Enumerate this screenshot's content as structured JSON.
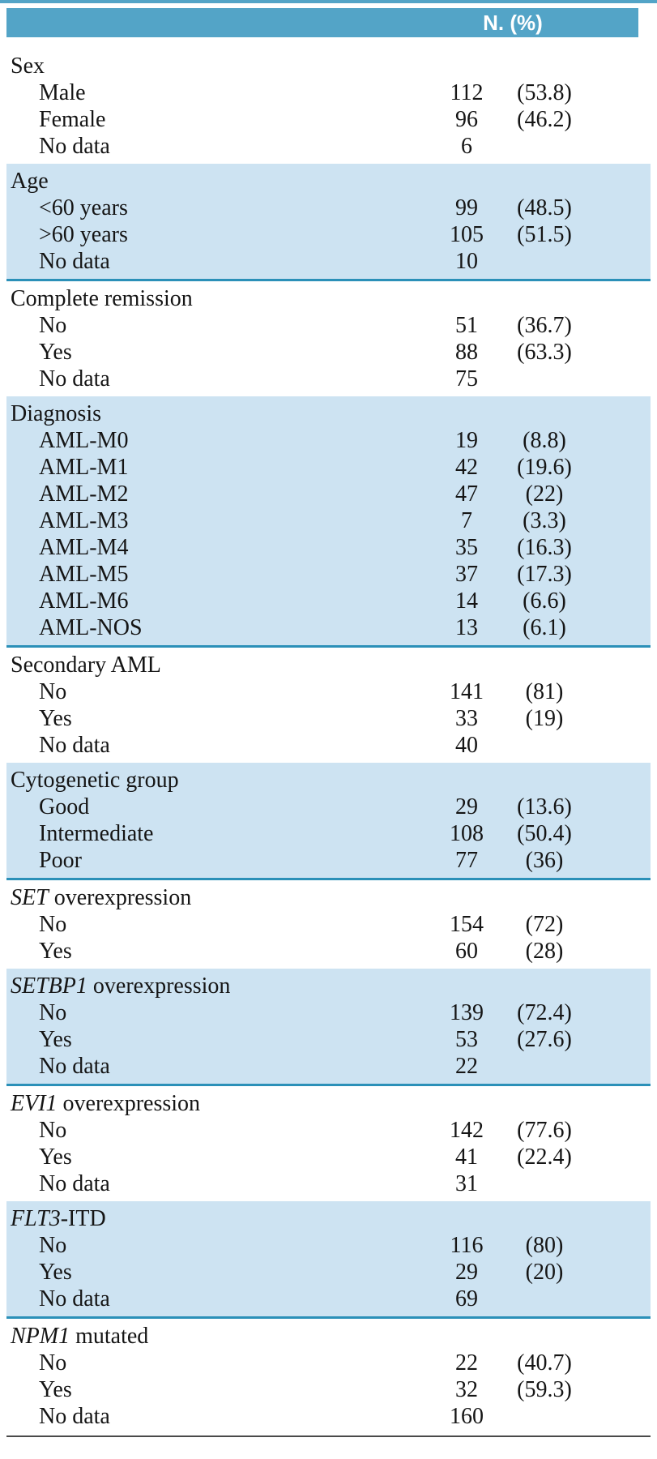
{
  "header": {
    "column_label": "N. (%)"
  },
  "colors": {
    "band_teal": "#53a4c7",
    "row_light_blue": "#cde3f2",
    "separator_teal": "#2b90b8",
    "bottom_rule_gray": "#4a4a4a"
  },
  "sections": [
    {
      "group_italic": "",
      "group_rest": "Sex",
      "shaded": false,
      "rows": [
        {
          "label": "Male",
          "n": "112",
          "pct": "(53.8)"
        },
        {
          "label": "Female",
          "n": "96",
          "pct": "(46.2)"
        },
        {
          "label": "No data",
          "n": "6",
          "pct": ""
        }
      ]
    },
    {
      "group_italic": "",
      "group_rest": "Age",
      "shaded": true,
      "rows": [
        {
          "label": "<60 years",
          "n": "99",
          "pct": "(48.5)"
        },
        {
          "label": ">60 years",
          "n": "105",
          "pct": "(51.5)"
        },
        {
          "label": "No data",
          "n": "10",
          "pct": ""
        }
      ]
    },
    {
      "group_italic": "",
      "group_rest": "Complete remission",
      "shaded": false,
      "rows": [
        {
          "label": "No",
          "n": "51",
          "pct": "(36.7)"
        },
        {
          "label": "Yes",
          "n": "88",
          "pct": "(63.3)"
        },
        {
          "label": "No data",
          "n": "75",
          "pct": ""
        }
      ]
    },
    {
      "group_italic": "",
      "group_rest": "Diagnosis",
      "shaded": true,
      "rows": [
        {
          "label": "AML-M0",
          "n": "19",
          "pct": "(8.8)"
        },
        {
          "label": "AML-M1",
          "n": "42",
          "pct": "(19.6)"
        },
        {
          "label": "AML-M2",
          "n": "47",
          "pct": "(22)"
        },
        {
          "label": "AML-M3",
          "n": "7",
          "pct": "(3.3)"
        },
        {
          "label": "AML-M4",
          "n": "35",
          "pct": "(16.3)"
        },
        {
          "label": "AML-M5",
          "n": "37",
          "pct": "(17.3)"
        },
        {
          "label": "AML-M6",
          "n": "14",
          "pct": "(6.6)"
        },
        {
          "label": "AML-NOS",
          "n": "13",
          "pct": "(6.1)"
        }
      ]
    },
    {
      "group_italic": "",
      "group_rest": "Secondary AML",
      "shaded": false,
      "rows": [
        {
          "label": "No",
          "n": "141",
          "pct": "(81)"
        },
        {
          "label": "Yes",
          "n": "33",
          "pct": "(19)"
        },
        {
          "label": "No data",
          "n": "40",
          "pct": ""
        }
      ]
    },
    {
      "group_italic": "",
      "group_rest": "Cytogenetic group",
      "shaded": true,
      "rows": [
        {
          "label": "Good",
          "n": "29",
          "pct": "(13.6)"
        },
        {
          "label": "Intermediate",
          "n": "108",
          "pct": "(50.4)"
        },
        {
          "label": "Poor",
          "n": "77",
          "pct": "(36)"
        }
      ]
    },
    {
      "group_italic": "SET",
      "group_rest": " overexpression",
      "shaded": false,
      "rows": [
        {
          "label": "No",
          "n": "154",
          "pct": "(72)"
        },
        {
          "label": "Yes",
          "n": "60",
          "pct": "(28)"
        }
      ]
    },
    {
      "group_italic": "SETBP1",
      "group_rest": " overexpression",
      "shaded": true,
      "rows": [
        {
          "label": "No",
          "n": "139",
          "pct": "(72.4)"
        },
        {
          "label": "Yes",
          "n": "53",
          "pct": "(27.6)"
        },
        {
          "label": "No data",
          "n": "22",
          "pct": ""
        }
      ]
    },
    {
      "group_italic": "EVI1",
      "group_rest": " overexpression",
      "shaded": false,
      "rows": [
        {
          "label": "No",
          "n": "142",
          "pct": "(77.6)"
        },
        {
          "label": "Yes",
          "n": "41",
          "pct": "(22.4)"
        },
        {
          "label": "No data",
          "n": "31",
          "pct": ""
        }
      ]
    },
    {
      "group_italic": "FLT3",
      "group_rest": "-ITD",
      "shaded": true,
      "rows": [
        {
          "label": "No",
          "n": "116",
          "pct": "(80)"
        },
        {
          "label": "Yes",
          "n": "29",
          "pct": "(20)"
        },
        {
          "label": "No data",
          "n": "69",
          "pct": ""
        }
      ]
    },
    {
      "group_italic": "NPM1",
      "group_rest": " mutated",
      "shaded": false,
      "rows": [
        {
          "label": "No",
          "n": "22",
          "pct": "(40.7)"
        },
        {
          "label": "Yes",
          "n": "32",
          "pct": "(59.3)"
        },
        {
          "label": "No data",
          "n": "160",
          "pct": ""
        }
      ]
    }
  ]
}
